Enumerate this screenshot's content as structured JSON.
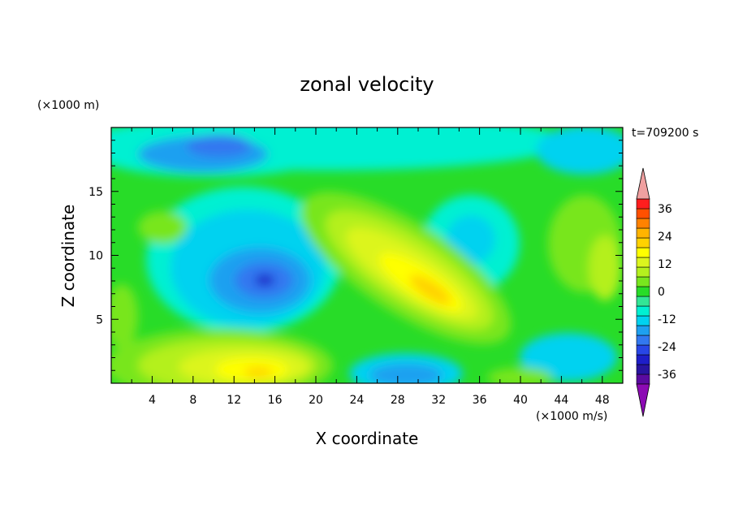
{
  "chart_data": {
    "type": "heatmap",
    "title": "zonal velocity",
    "xlabel": "X coordinate",
    "ylabel": "Z coordinate",
    "x_units": "(×1000 m/s)",
    "y_units": "(×1000 m)",
    "time_label": "t=709200 s",
    "xlim": [
      0,
      50
    ],
    "ylim": [
      0,
      20
    ],
    "x_ticks": [
      4,
      8,
      12,
      16,
      20,
      24,
      28,
      32,
      36,
      40,
      44,
      48
    ],
    "y_ticks": [
      5,
      10,
      15
    ],
    "colorbar": {
      "levels": [
        -36,
        -32,
        -28,
        -24,
        -20,
        -16,
        -12,
        -8,
        -4,
        0,
        4,
        8,
        12,
        16,
        20,
        24,
        28,
        32,
        36
      ],
      "tick_labels": [
        "36",
        "24",
        "12",
        "0",
        "-12",
        "-24",
        "-36"
      ],
      "colors": [
        "#5a0aa0",
        "#2814a0",
        "#1e1ec8",
        "#2846e6",
        "#3278f0",
        "#1ea0f0",
        "#00d2f0",
        "#00f0d2",
        "#32e696",
        "#28dc28",
        "#78e61e",
        "#b4f01e",
        "#dcf51e",
        "#ffff00",
        "#ffd200",
        "#ffb400",
        "#ff8200",
        "#ff5000",
        "#ff1e1e"
      ],
      "under_color": "#8c0ab4",
      "over_color": "#f0a0a0"
    },
    "features": [
      {
        "type": "min",
        "x": 15,
        "y": 8,
        "value": -26
      },
      {
        "type": "max",
        "x": 30,
        "y": 8,
        "value": 20
      },
      {
        "type": "max",
        "x": 15,
        "y": 1.5,
        "value": 18
      },
      {
        "type": "min",
        "x": 15,
        "y": 17.5,
        "value": -16
      }
    ]
  }
}
